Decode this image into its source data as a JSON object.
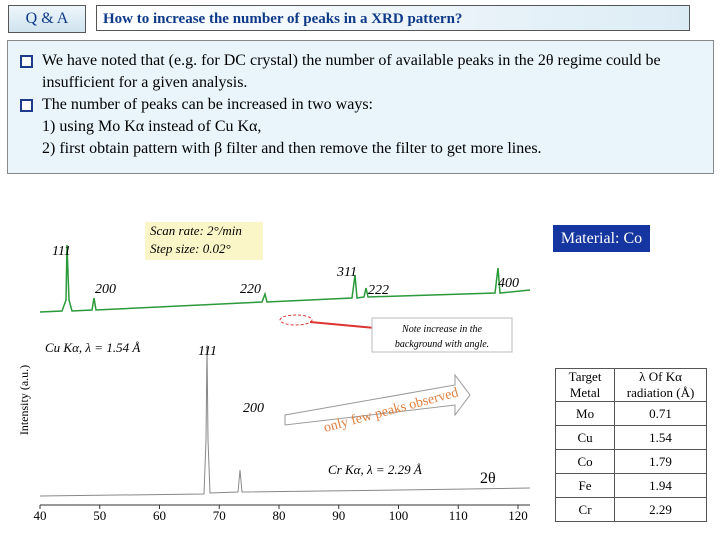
{
  "header": {
    "tag": "Q & A",
    "title": "How to increase the number of peaks in a XRD pattern?"
  },
  "bullets": [
    {
      "lines": [
        "We have noted that (e.g. for DC crystal) the number of available peaks in the 2θ regime could be insufficient for a given analysis."
      ]
    },
    {
      "lines": [
        "The number of peaks can be increased in two ways:",
        "1) using Mo Kα instead of Cu Kα,",
        "2) first obtain pattern with β filter and then remove the filter to get more lines."
      ]
    }
  ],
  "figure": {
    "scan_rate": "Scan rate: 2°/min",
    "step_size": "Step size: 0.02°",
    "y_label": "Intensity (a.u.)",
    "x_label": "2θ",
    "x_ticks": [
      "40",
      "50",
      "60",
      "70",
      "80",
      "90",
      "100",
      "110",
      "120"
    ],
    "cu_peaks": [
      "111",
      "200",
      "220",
      "311",
      "222",
      "400"
    ],
    "cu_label": "Cu Kα, λ = 1.54 Å",
    "cr_peaks": [
      "111",
      "200"
    ],
    "cr_label": "Cr Kα, λ = 2.29 Å",
    "note": "Note increase in the background with angle.",
    "few_peaks": "only few peaks observed"
  },
  "material": "Material: Co",
  "table": {
    "header": [
      "Target Metal",
      "λ Of Kα radiation (Å)"
    ],
    "rows": [
      [
        "Mo",
        "0.71"
      ],
      [
        "Cu",
        "1.54"
      ],
      [
        "Co",
        "1.79"
      ],
      [
        "Fe",
        "1.94"
      ],
      [
        "Cr",
        "2.29"
      ]
    ]
  }
}
